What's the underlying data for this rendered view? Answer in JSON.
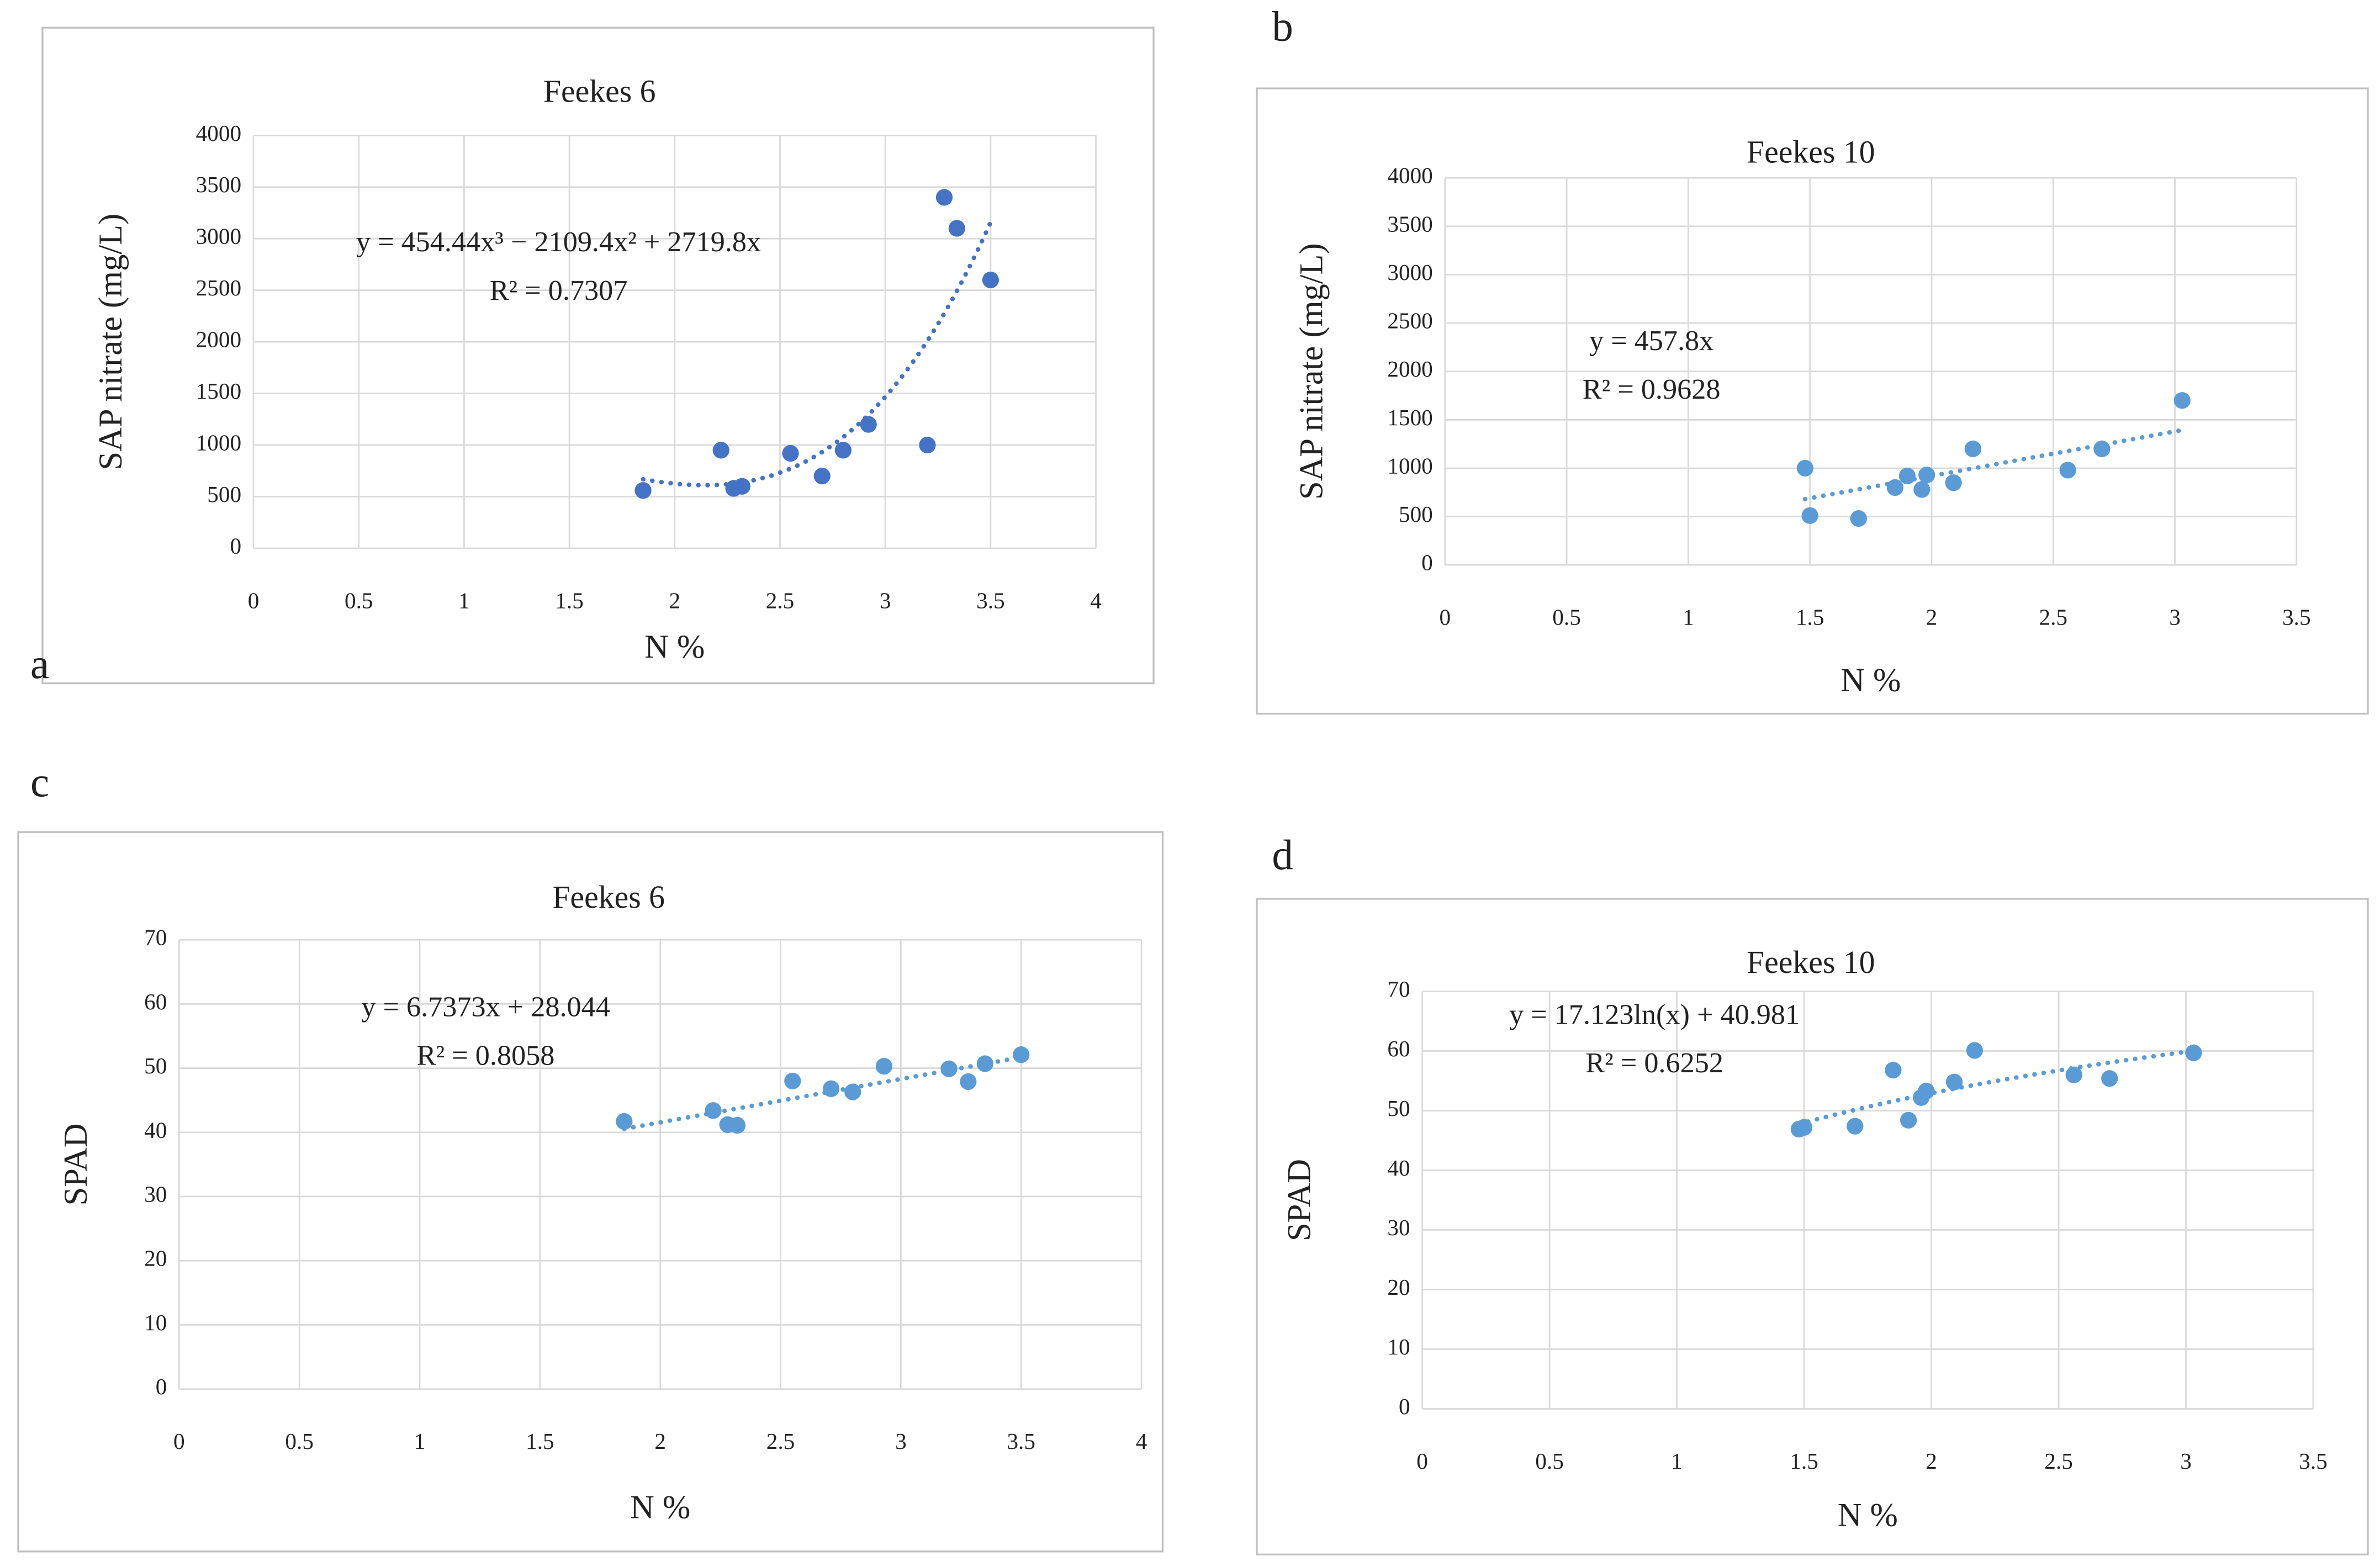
{
  "chart_data": [
    {
      "type": "scatter",
      "label": "a",
      "title": "Feekes 6",
      "x_label": "N %",
      "y_label": "SAP nitrate (mg/L)",
      "equation": "y = 454.44x³  −  2109.4x² + 2719.8x",
      "r_squared": "R² = 0.7307",
      "trendline": "cubic-through-origin",
      "color": "#4472c4",
      "grid": true,
      "x": [
        1.85,
        2.22,
        2.28,
        2.32,
        2.55,
        2.7,
        2.8,
        2.92,
        3.2,
        3.28,
        3.34,
        3.5
      ],
      "values": [
        560,
        950,
        580,
        600,
        920,
        700,
        950,
        1200,
        1000,
        3400,
        3100,
        2600
      ],
      "xlim": [
        0,
        4
      ],
      "xticks": [
        0,
        0.5,
        1,
        1.5,
        2,
        2.5,
        3,
        3.5,
        4
      ],
      "ylim": [
        0,
        4000
      ],
      "yticks": [
        0,
        500,
        1000,
        1500,
        2000,
        2500,
        3000,
        3500,
        4000
      ]
    },
    {
      "type": "scatter",
      "label": "b",
      "title": "Feekes 10",
      "x_label": "N %",
      "y_label": "SAP nitrate (mg/L)",
      "equation": "y = 457.8x",
      "r_squared": "R² = 0.9628",
      "trendline": "linear-through-origin",
      "color": "#5b9bd5",
      "grid": true,
      "x": [
        1.48,
        1.5,
        1.7,
        1.85,
        1.9,
        1.96,
        1.98,
        2.09,
        2.17,
        2.56,
        2.7,
        3.03
      ],
      "values": [
        1000,
        510,
        480,
        800,
        920,
        780,
        930,
        850,
        1200,
        980,
        1200,
        1700
      ],
      "xlim": [
        0,
        3.5
      ],
      "xticks": [
        0,
        0.5,
        1,
        1.5,
        2,
        2.5,
        3,
        3.5
      ],
      "ylim": [
        0,
        4000
      ],
      "yticks": [
        0,
        500,
        1000,
        1500,
        2000,
        2500,
        3000,
        3500,
        4000
      ]
    },
    {
      "type": "scatter",
      "label": "c",
      "title": "Feekes 6",
      "x_label": "N %",
      "y_label": "SPAD",
      "equation": "y = 6.7373x + 28.044",
      "r_squared": "R² = 0.8058",
      "trendline": "linear",
      "color": "#5b9bd5",
      "grid": true,
      "x": [
        1.85,
        2.22,
        2.28,
        2.32,
        2.55,
        2.71,
        2.8,
        2.93,
        3.2,
        3.28,
        3.35,
        3.5
      ],
      "values": [
        41.7,
        43.4,
        41.2,
        41.1,
        48,
        46.8,
        46.3,
        50.3,
        49.9,
        47.9,
        50.7,
        52.1
      ],
      "xlim": [
        0,
        4
      ],
      "xticks": [
        0,
        0.5,
        1,
        1.5,
        2,
        2.5,
        3,
        3.5,
        4
      ],
      "ylim": [
        0,
        70
      ],
      "yticks": [
        0,
        10,
        20,
        30,
        40,
        50,
        60,
        70
      ]
    },
    {
      "type": "scatter",
      "label": "d",
      "title": "Feekes 10",
      "x_label": "N %",
      "y_label": "SPAD",
      "equation": "y = 17.123ln(x) + 40.981",
      "r_squared": "R² = 0.6252",
      "trendline": "logarithmic",
      "color": "#5b9bd5",
      "grid": true,
      "x": [
        1.48,
        1.5,
        1.7,
        1.85,
        1.91,
        1.96,
        1.98,
        2.09,
        2.17,
        2.56,
        2.7,
        3.03
      ],
      "values": [
        46.9,
        47.2,
        47.4,
        56.8,
        48.4,
        52.2,
        53.3,
        54.8,
        60.1,
        56,
        55.4,
        59.7
      ],
      "xlim": [
        0,
        3.5
      ],
      "xticks": [
        0,
        0.5,
        1,
        1.5,
        2,
        2.5,
        3,
        3.5
      ],
      "ylim": [
        0,
        70
      ],
      "yticks": [
        0,
        10,
        20,
        30,
        40,
        50,
        60,
        70
      ]
    }
  ]
}
